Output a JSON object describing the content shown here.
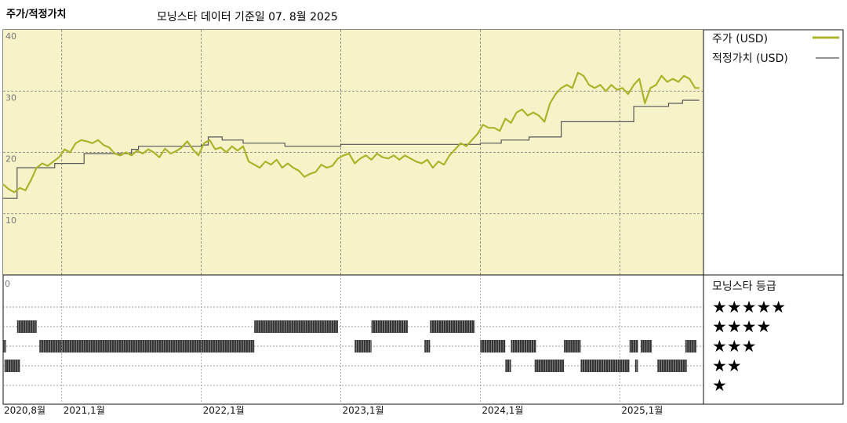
{
  "header": {
    "title": "주가/적정가치",
    "subtitle": "모닝스타 데이터 기준일 07. 8월 2025"
  },
  "legend": {
    "price_label": "주가 (USD)",
    "fair_label": "적정가치 (USD)",
    "rating_title": "모닝스타 등급",
    "stars": [
      "★★★★★",
      "★★★★",
      "★★★",
      "★★",
      "★"
    ]
  },
  "colors": {
    "price": "#aab42a",
    "fair": "#555555",
    "plot_bg": "#f7f3c9",
    "rating_bar": "#333333"
  },
  "chart_data": {
    "type": "line",
    "title": "주가/적정가치",
    "ylim": [
      0,
      40
    ],
    "yticks": [
      "40",
      "30",
      "20",
      "10",
      "0"
    ],
    "xtick_labels": [
      "2020,8월",
      "2021,1월",
      "2022,1월",
      "2023,1월",
      "2024,1월",
      "2025,1월"
    ],
    "xtick_dates": [
      2020.58,
      2021.0,
      2022.0,
      2023.0,
      2024.0,
      2025.0
    ],
    "x_range": [
      2020.58,
      2025.6
    ],
    "series": [
      {
        "name": "주가 (USD)",
        "x": [
          2020.58,
          2020.62,
          2020.66,
          2020.7,
          2020.74,
          2020.78,
          2020.82,
          2020.86,
          2020.9,
          2020.94,
          2020.98,
          2021.02,
          2021.06,
          2021.1,
          2021.14,
          2021.18,
          2021.22,
          2021.26,
          2021.3,
          2021.34,
          2021.38,
          2021.42,
          2021.46,
          2021.5,
          2021.54,
          2021.58,
          2021.62,
          2021.66,
          2021.7,
          2021.74,
          2021.78,
          2021.82,
          2021.86,
          2021.9,
          2021.94,
          2021.98,
          2022.02,
          2022.06,
          2022.1,
          2022.14,
          2022.18,
          2022.22,
          2022.26,
          2022.3,
          2022.34,
          2022.38,
          2022.42,
          2022.46,
          2022.5,
          2022.54,
          2022.58,
          2022.62,
          2022.66,
          2022.7,
          2022.74,
          2022.78,
          2022.82,
          2022.86,
          2022.9,
          2022.94,
          2022.98,
          2023.02,
          2023.06,
          2023.1,
          2023.14,
          2023.18,
          2023.22,
          2023.26,
          2023.3,
          2023.34,
          2023.38,
          2023.42,
          2023.46,
          2023.5,
          2023.54,
          2023.58,
          2023.62,
          2023.66,
          2023.7,
          2023.74,
          2023.78,
          2023.82,
          2023.86,
          2023.9,
          2023.94,
          2023.98,
          2024.02,
          2024.06,
          2024.1,
          2024.14,
          2024.18,
          2024.22,
          2024.26,
          2024.3,
          2024.34,
          2024.38,
          2024.42,
          2024.46,
          2024.5,
          2024.54,
          2024.58,
          2024.62,
          2024.66,
          2024.7,
          2024.74,
          2024.78,
          2024.82,
          2024.86,
          2024.9,
          2024.94,
          2024.98,
          2025.02,
          2025.06,
          2025.1,
          2025.14,
          2025.18,
          2025.22,
          2025.26,
          2025.3,
          2025.34,
          2025.38,
          2025.42,
          2025.46,
          2025.5,
          2025.54,
          2025.57
        ],
        "values": [
          14.8,
          14.0,
          13.5,
          14.2,
          13.8,
          15.5,
          17.5,
          18.2,
          17.8,
          18.5,
          19.2,
          20.5,
          20.0,
          21.5,
          22.0,
          21.8,
          21.5,
          22.0,
          21.2,
          20.8,
          19.8,
          19.5,
          20.0,
          19.5,
          20.3,
          19.8,
          20.5,
          20.0,
          19.2,
          20.6,
          19.8,
          20.2,
          20.8,
          21.8,
          20.5,
          19.5,
          21.5,
          22.0,
          20.5,
          20.8,
          20.0,
          21.0,
          20.3,
          21.0,
          18.5,
          18.0,
          17.5,
          18.5,
          18.0,
          18.8,
          17.5,
          18.2,
          17.5,
          17.0,
          16.0,
          16.5,
          16.8,
          18.0,
          17.5,
          17.8,
          19.0,
          19.5,
          19.8,
          18.2,
          19.0,
          19.5,
          18.8,
          19.8,
          19.2,
          19.0,
          19.5,
          18.8,
          19.5,
          19.0,
          18.5,
          18.2,
          18.8,
          17.5,
          18.5,
          18.0,
          19.5,
          20.5,
          21.5,
          21.0,
          22.0,
          23.0,
          24.5,
          24.0,
          24.0,
          23.5,
          25.5,
          24.8,
          26.5,
          27.0,
          26.0,
          26.5,
          26.0,
          25.0,
          28.0,
          29.5,
          30.5,
          31.0,
          30.5,
          33.0,
          32.5,
          31.0,
          30.5,
          31.0,
          30.0,
          31.0,
          30.2,
          30.5,
          29.5,
          31.0,
          32.0,
          28.0,
          30.5,
          31.0,
          32.5,
          31.5,
          32.0,
          31.5,
          32.5,
          32.0,
          30.5,
          30.5
        ]
      },
      {
        "name": "적정가치 (USD)",
        "steps": [
          [
            2020.58,
            12.5
          ],
          [
            2020.68,
            17.5
          ],
          [
            2020.95,
            18.2
          ],
          [
            2021.16,
            19.8
          ],
          [
            2021.5,
            20.5
          ],
          [
            2021.55,
            21.0
          ],
          [
            2022.0,
            21.2
          ],
          [
            2022.05,
            22.5
          ],
          [
            2022.15,
            22.0
          ],
          [
            2022.3,
            21.5
          ],
          [
            2022.6,
            21.0
          ],
          [
            2023.0,
            21.3
          ],
          [
            2024.0,
            21.5
          ],
          [
            2024.15,
            22.0
          ],
          [
            2024.35,
            22.5
          ],
          [
            2024.58,
            25.0
          ],
          [
            2025.1,
            27.5
          ],
          [
            2025.35,
            28.0
          ],
          [
            2025.45,
            28.5
          ],
          [
            2025.57,
            28.5
          ]
        ]
      }
    ],
    "rating_history": {
      "5": [],
      "4": [
        [
          2020.68,
          2020.82
        ],
        [
          2022.38,
          2022.98
        ],
        [
          2023.22,
          2023.48
        ],
        [
          2023.64,
          2023.96
        ]
      ],
      "3": [
        [
          2020.58,
          2020.6
        ],
        [
          2020.84,
          2022.38
        ],
        [
          2023.1,
          2023.22
        ],
        [
          2023.6,
          2023.64
        ],
        [
          2024.0,
          2024.18
        ],
        [
          2024.22,
          2024.4
        ],
        [
          2024.6,
          2024.72
        ],
        [
          2025.07,
          2025.13
        ],
        [
          2025.15,
          2025.23
        ],
        [
          2025.47,
          2025.55
        ]
      ],
      "2": [
        [
          2020.59,
          2020.7
        ],
        [
          2024.18,
          2024.22
        ],
        [
          2024.39,
          2024.6
        ],
        [
          2024.72,
          2025.07
        ],
        [
          2025.11,
          2025.13
        ],
        [
          2025.27,
          2025.48
        ]
      ],
      "1": []
    }
  }
}
